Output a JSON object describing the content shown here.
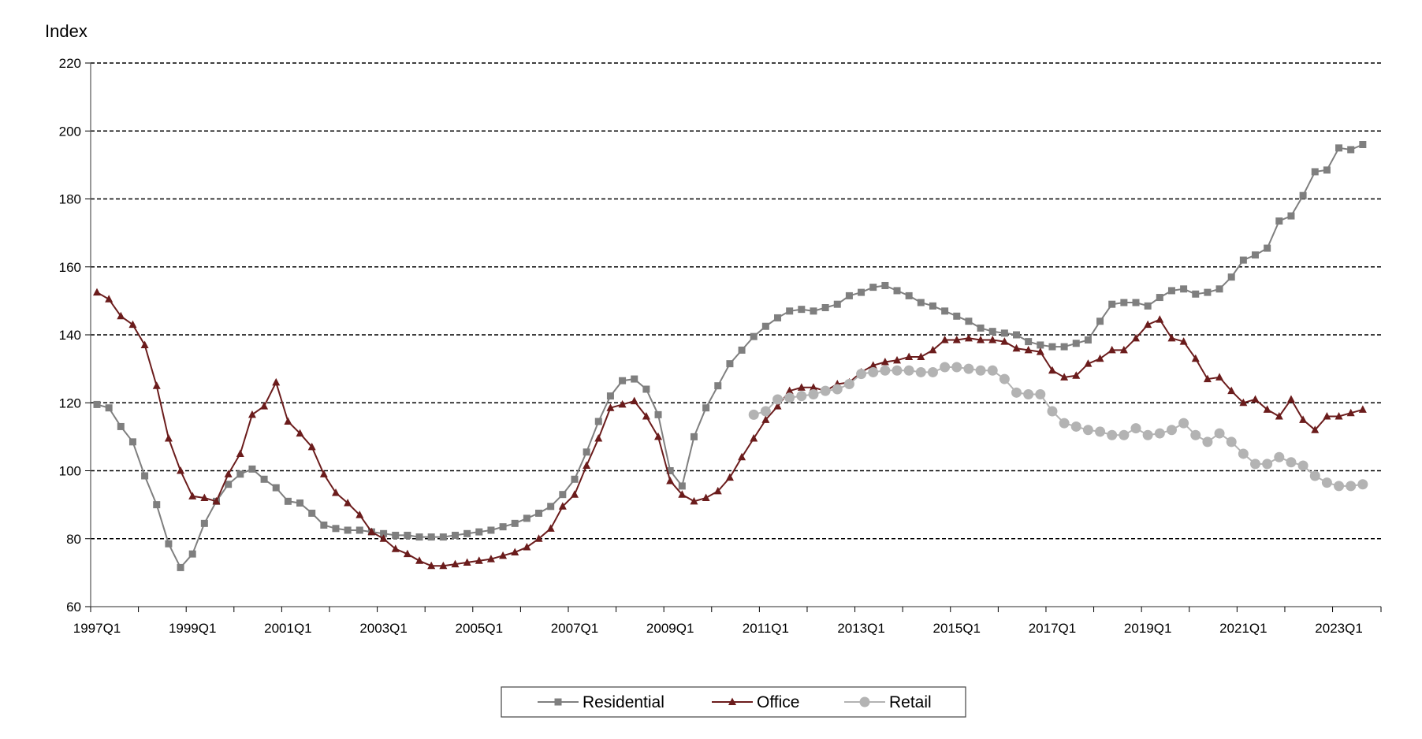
{
  "chart_data": {
    "type": "line",
    "title": "",
    "ylabel": "Index",
    "xlabel": "",
    "ylim": [
      60,
      220
    ],
    "yticks": [
      60,
      80,
      100,
      120,
      140,
      160,
      180,
      200,
      220
    ],
    "x_start": "1997Q1",
    "x_end": "2023Q4",
    "xticks": [
      "1997Q1",
      "1999Q1",
      "2001Q1",
      "2003Q1",
      "2005Q1",
      "2007Q1",
      "2009Q1",
      "2011Q1",
      "2013Q1",
      "2015Q1",
      "2017Q1",
      "2019Q1",
      "2021Q1",
      "2023Q1"
    ],
    "grid": "horizontal-dashed",
    "legend_position": "bottom-center",
    "series": [
      {
        "name": "Residential",
        "color": "#7f7f7f",
        "marker": "square",
        "start": "1997Q1",
        "values": [
          119.5,
          118.5,
          113,
          108.5,
          98.5,
          90,
          78.5,
          71.5,
          75.5,
          84.5,
          91,
          96,
          99,
          100.5,
          97.5,
          95,
          91,
          90.5,
          87.5,
          84,
          83,
          82.5,
          82.5,
          82,
          81.5,
          81,
          81,
          80.5,
          80.5,
          80.5,
          81,
          81.5,
          82,
          82.5,
          83.5,
          84.5,
          86,
          87.5,
          89.5,
          93,
          97.5,
          105.5,
          114.5,
          122,
          126.5,
          127,
          124,
          116.5,
          100,
          95.5,
          110,
          118.5,
          125,
          131.5,
          135.5,
          139.5,
          142.5,
          145,
          147,
          147.5,
          147,
          148,
          149,
          151.5,
          152.5,
          154,
          154.5,
          153,
          151.5,
          149.5,
          148.5,
          147,
          145.5,
          144,
          142,
          141,
          140.5,
          140,
          138,
          137,
          136.5,
          136.5,
          137.5,
          138.5,
          144,
          149,
          149.5,
          149.5,
          148.5,
          151,
          153,
          153.5,
          152,
          152.5,
          153.5,
          157,
          162,
          163.5,
          165.5,
          173.5,
          175,
          181,
          188,
          188.5,
          195,
          194.5,
          196
        ]
      },
      {
        "name": "Office",
        "color": "#6b1c1c",
        "marker": "triangle",
        "start": "1997Q1",
        "values": [
          152.5,
          150.5,
          145.5,
          143,
          137,
          125,
          109.5,
          100,
          92.5,
          92,
          91,
          99,
          105,
          116.5,
          119,
          126,
          114.5,
          111,
          107,
          99,
          93.5,
          90.5,
          87,
          82,
          80,
          77,
          75.5,
          73.5,
          72,
          72,
          72.5,
          73,
          73.5,
          74,
          75,
          76,
          77.5,
          80,
          83,
          89.5,
          93,
          101.5,
          109.5,
          118.5,
          119.5,
          120.5,
          116,
          110,
          97,
          93,
          91,
          92,
          94,
          98,
          104,
          109.5,
          115,
          119,
          123.5,
          124.5,
          124.5,
          123.5,
          125.5,
          126,
          129,
          131,
          132,
          132.5,
          133.5,
          133.5,
          135.5,
          138.5,
          138.5,
          139,
          138.5,
          138.5,
          138,
          136,
          135.5,
          135,
          129.5,
          127.5,
          128,
          131.5,
          133,
          135.5,
          135.5,
          139,
          143,
          144.5,
          139,
          138,
          133,
          127,
          127.5,
          123.5,
          120,
          121,
          118,
          116,
          121,
          115,
          112,
          116,
          116,
          117,
          118
        ]
      },
      {
        "name": "Retail",
        "color": "#b3b3b3",
        "marker": "circle",
        "start": "2010Q4",
        "values": [
          116.5,
          117.5,
          121,
          121.5,
          122,
          122.5,
          123.5,
          124,
          125.5,
          128.5,
          129,
          129.5,
          129.5,
          129.5,
          129,
          129,
          130.5,
          130.5,
          130,
          129.5,
          129.5,
          127,
          123,
          122.5,
          122.5,
          117.5,
          114,
          113,
          112,
          111.5,
          110.5,
          110.5,
          112.5,
          110.5,
          111,
          112,
          114,
          110.5,
          108.5,
          111,
          108.5,
          105,
          102,
          102,
          104,
          102.5,
          101.5,
          98.5,
          96.5,
          95.5,
          95.5,
          96
        ]
      }
    ]
  }
}
